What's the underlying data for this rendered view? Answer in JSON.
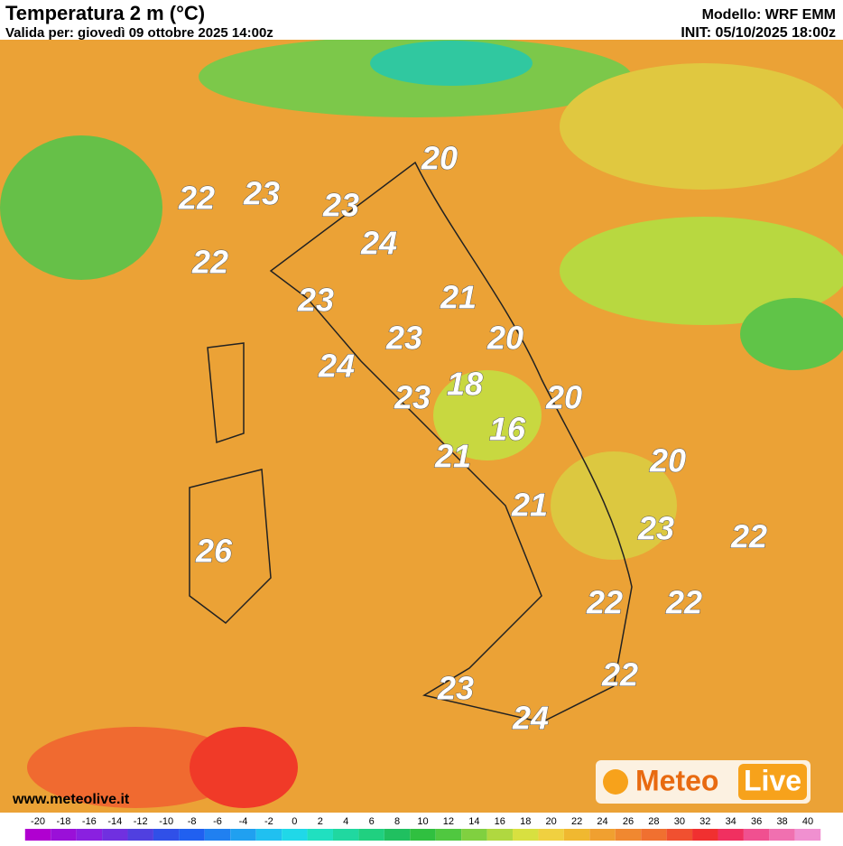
{
  "header": {
    "title": "Temperatura 2 m (°C)",
    "valid": "Valida per: giovedì 09 ottobre 2025 14:00z",
    "model": "Modello: WRF EMM",
    "init": "INIT: 05/10/2025 18:00z"
  },
  "labels": [
    "20",
    "22",
    "23",
    "23",
    "24",
    "22",
    "23",
    "21",
    "23",
    "20",
    "24",
    "23",
    "18",
    "20",
    "16",
    "21",
    "20",
    "21",
    "23",
    "22",
    "26",
    "22",
    "22",
    "22",
    "23",
    "24"
  ],
  "footer": {
    "site": "www.meteolive.it",
    "logo_a": "Meteo",
    "logo_b": "Live"
  },
  "colorbar": {
    "ticks": [
      -20,
      -18,
      -16,
      -14,
      -12,
      -10,
      -8,
      -6,
      -4,
      -2,
      0,
      2,
      4,
      6,
      8,
      10,
      12,
      14,
      16,
      18,
      20,
      22,
      24,
      26,
      28,
      30,
      32,
      34,
      36,
      38,
      40
    ],
    "colors": [
      "#b000d0",
      "#9a10d8",
      "#8a20e0",
      "#7030e0",
      "#5040e0",
      "#3050e8",
      "#2060f0",
      "#2080f0",
      "#20a0f0",
      "#20c0f0",
      "#20d8e8",
      "#20e0c0",
      "#20d8a0",
      "#20d080",
      "#20c060",
      "#30c040",
      "#50c840",
      "#80d040",
      "#b0d840",
      "#d8e040",
      "#f0d040",
      "#f0b830",
      "#f0a030",
      "#f08830",
      "#f07030",
      "#f05030",
      "#f03030",
      "#f03060",
      "#f05090",
      "#f070b0",
      "#f090d0"
    ]
  }
}
